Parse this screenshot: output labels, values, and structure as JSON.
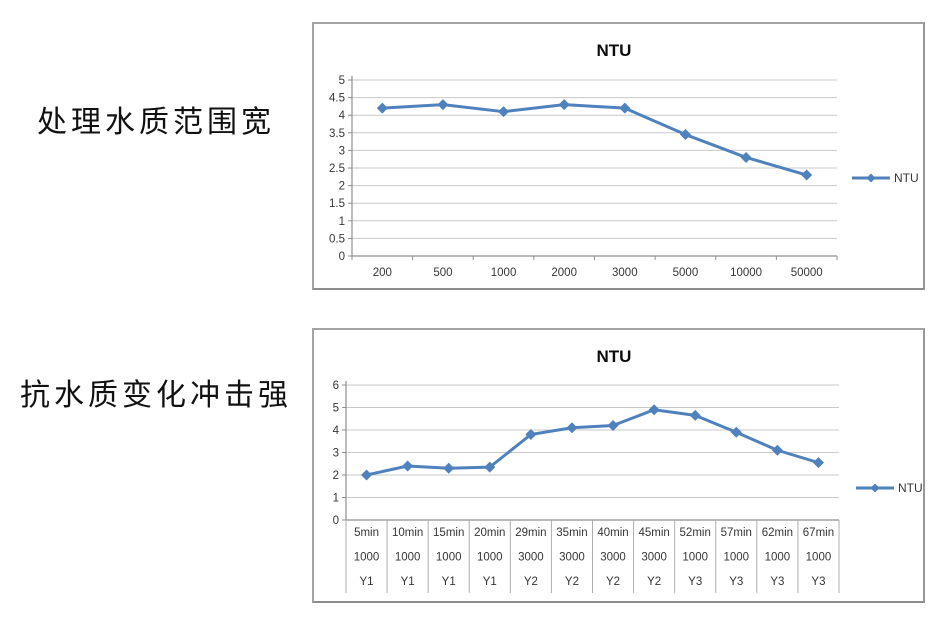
{
  "page": {
    "background": "#ffffff"
  },
  "labels": [
    {
      "text": "处理水质范围宽"
    },
    {
      "text": "抗水质变化冲击强"
    }
  ],
  "chart_data": [
    {
      "type": "line",
      "title": "NTU",
      "legend_label": "NTU",
      "legend_position": "right",
      "line_color": "#4F81BD",
      "categories": [
        "200",
        "500",
        "1000",
        "2000",
        "3000",
        "5000",
        "10000",
        "50000"
      ],
      "values": [
        4.2,
        4.3,
        4.1,
        4.3,
        4.2,
        3.45,
        2.8,
        2.3
      ],
      "xlabel": "",
      "ylabel": "",
      "ylim": [
        0,
        5
      ],
      "ystep": 0.5,
      "grid": true
    },
    {
      "type": "line",
      "title": "NTU",
      "legend_label": "NTU",
      "legend_position": "right",
      "line_color": "#4F81BD",
      "categories": [
        "5min",
        "10min",
        "15min",
        "20min",
        "29min",
        "35min",
        "40min",
        "45min",
        "52min",
        "57min",
        "62min",
        "67min"
      ],
      "category_rows": [
        [
          "5min",
          "10min",
          "15min",
          "20min",
          "29min",
          "35min",
          "40min",
          "45min",
          "52min",
          "57min",
          "62min",
          "67min"
        ],
        [
          "1000",
          "1000",
          "1000",
          "1000",
          "3000",
          "3000",
          "3000",
          "3000",
          "1000",
          "1000",
          "1000",
          "1000"
        ],
        [
          "Y1",
          "Y1",
          "Y1",
          "Y1",
          "Y2",
          "Y2",
          "Y2",
          "Y2",
          "Y3",
          "Y3",
          "Y3",
          "Y3"
        ]
      ],
      "values": [
        2.0,
        2.4,
        2.3,
        2.35,
        3.8,
        4.1,
        4.2,
        4.9,
        4.65,
        3.9,
        3.1,
        2.55
      ],
      "xlabel": "",
      "ylabel": "",
      "ylim": [
        0,
        6
      ],
      "ystep": 1,
      "grid": true
    }
  ],
  "colors": {
    "grid": "#c9c9c9",
    "axis": "#8f8f8f",
    "table_line": "#adadad",
    "text": "#363636",
    "title": "#0d0d0d"
  }
}
